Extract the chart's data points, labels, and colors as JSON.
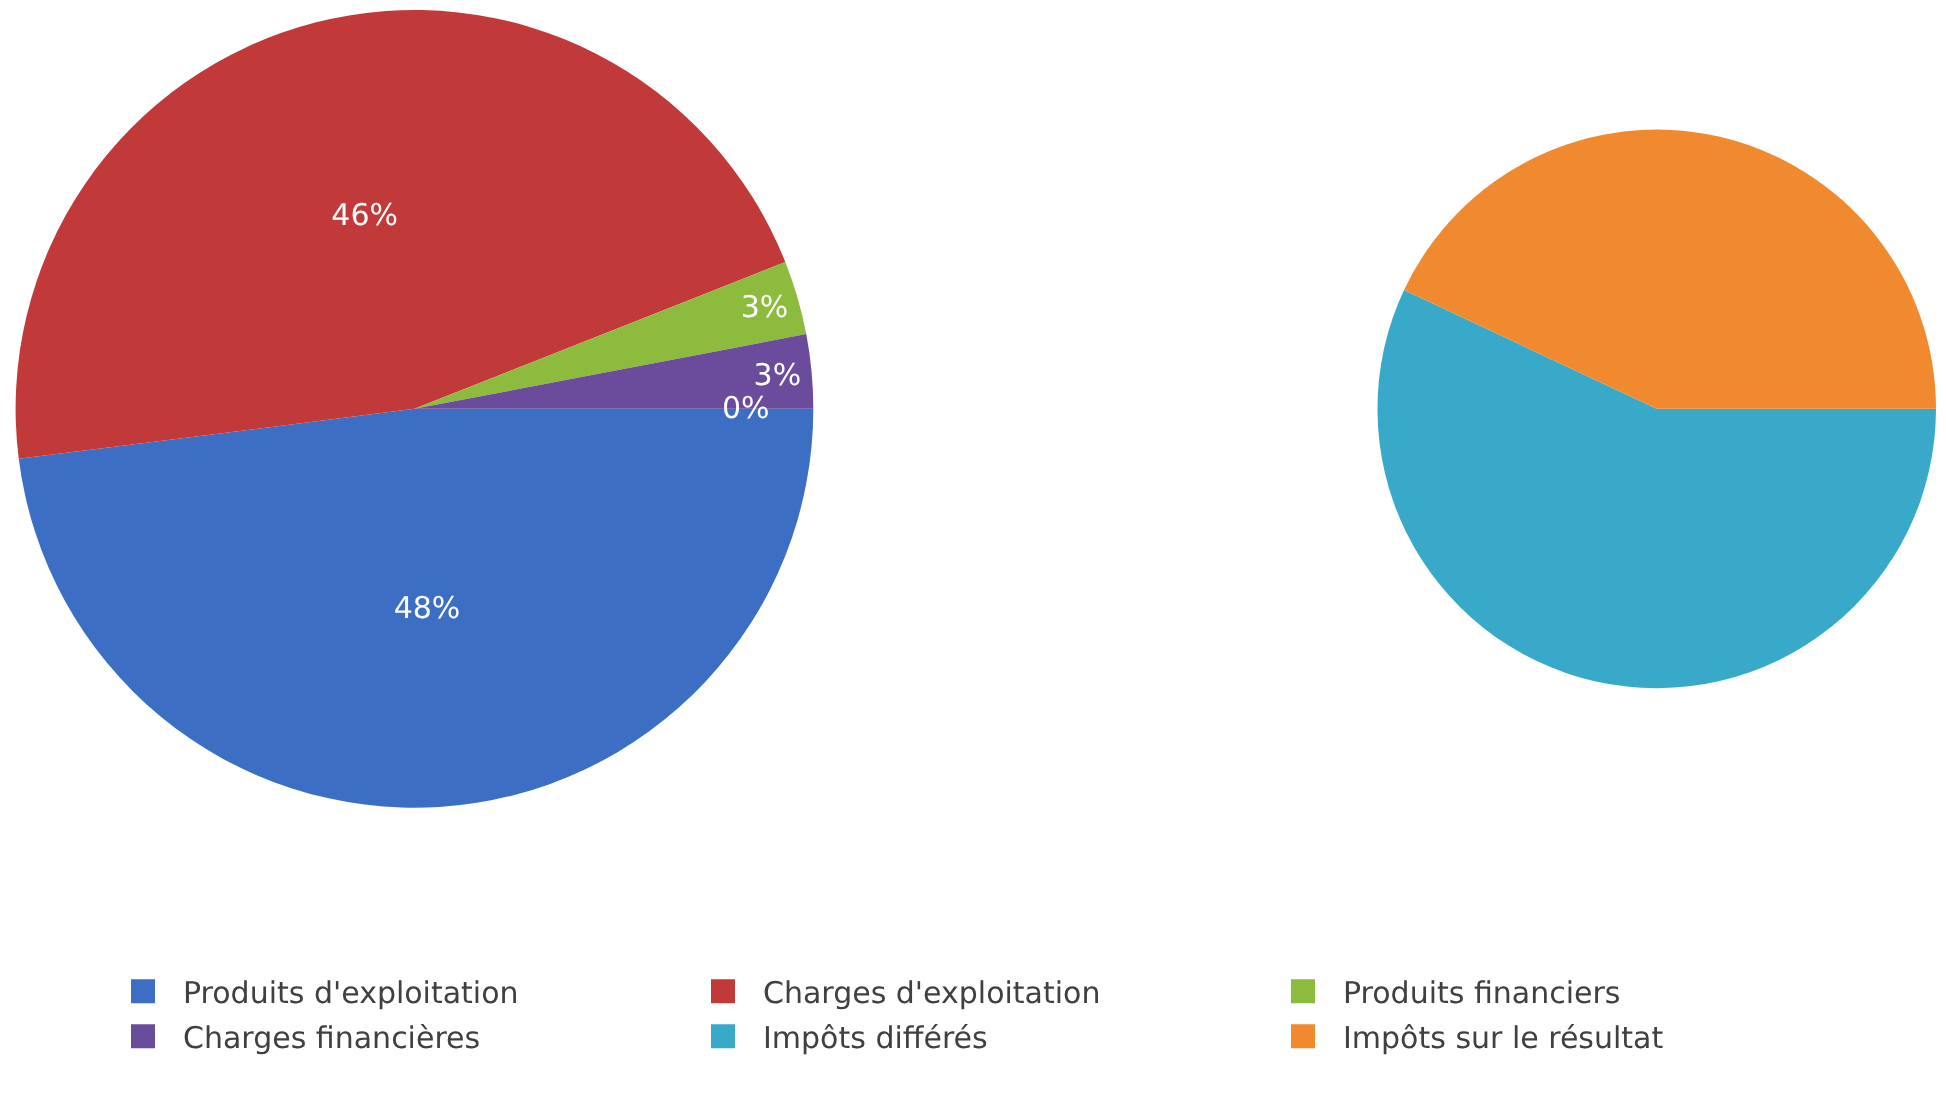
{
  "chart_data": [
    {
      "type": "pie",
      "categories": [
        "Produits d'exploitation",
        "Charges d'exploitation",
        "Produits financiers",
        "Charges financières",
        null
      ],
      "values": [
        48,
        46,
        3,
        3,
        0
      ],
      "value_labels": [
        "48%",
        "46%",
        "3%",
        "3%",
        "0%"
      ],
      "colors": [
        "#3c6fc4",
        "#c2393a",
        "#8cbb3e",
        "#6b4b9b",
        "#3aa8c8"
      ],
      "legend": "bottom"
    },
    {
      "type": "pie",
      "categories": [
        "Impôts différés",
        "Impôts sur le résultat"
      ],
      "values": [
        57,
        43
      ],
      "colors": [
        "#39a9c9",
        "#f18a2f"
      ],
      "legend": "bottom"
    }
  ]
}
